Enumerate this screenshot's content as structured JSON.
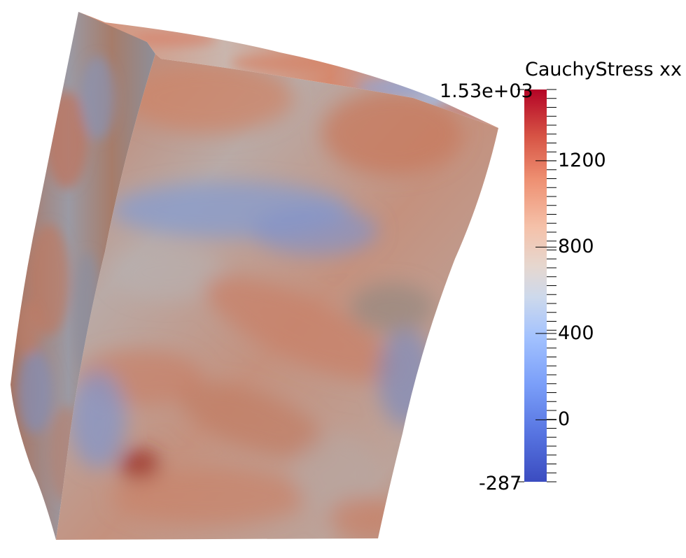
{
  "colorbar": {
    "title": "CauchyStress xx",
    "max_label": "1.53e+03",
    "min_label": "-287",
    "ticks": [
      {
        "label": "1200",
        "value": 1200
      },
      {
        "label": "800",
        "value": 800
      },
      {
        "label": "400",
        "value": 400
      },
      {
        "label": "0",
        "value": 0
      }
    ],
    "range": [
      -287,
      1530
    ],
    "colormap": [
      "#3b4cc0",
      "#6a8bef",
      "#9fbdfc",
      "#d0dbee",
      "#ecd3c5",
      "#f4a98a",
      "#e56d53",
      "#c43031",
      "#b40426"
    ]
  },
  "scene": {
    "object": "deformed cube mesh",
    "palette": {
      "warm": "#c9785c",
      "neutral": "#b9b0ac",
      "cool": "#8193c4"
    }
  }
}
